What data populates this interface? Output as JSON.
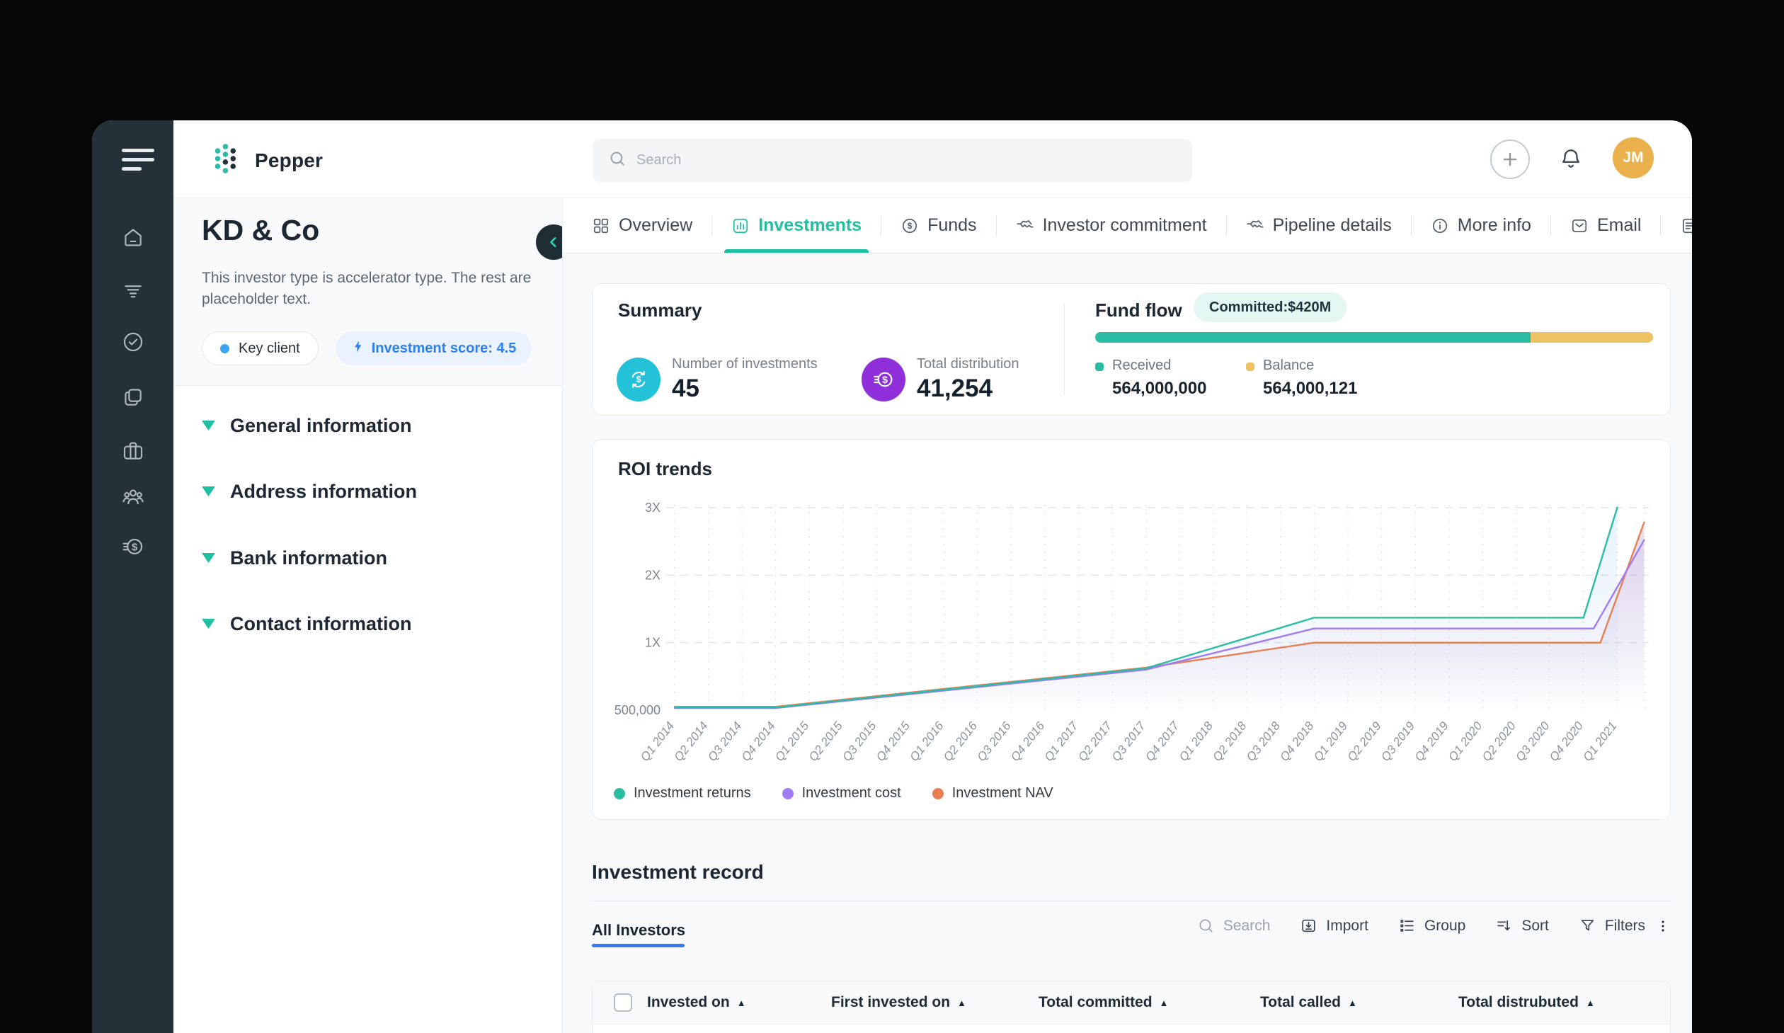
{
  "app": {
    "name": "Pepper"
  },
  "topbar": {
    "search_placeholder": "Search",
    "avatar_initials": "JM"
  },
  "rail": {
    "items": [
      {
        "name": "home",
        "icon": "home"
      },
      {
        "name": "pipeline",
        "icon": "layers"
      },
      {
        "name": "tasks",
        "icon": "check-circle"
      },
      {
        "name": "documents",
        "icon": "copy-stack"
      },
      {
        "name": "portfolio",
        "icon": "briefcase"
      },
      {
        "name": "investors",
        "icon": "people-group"
      },
      {
        "name": "payments",
        "icon": "coin-dollar"
      }
    ]
  },
  "investor_panel": {
    "name": "KD & Co",
    "description": "This investor type is accelerator type. The rest are placeholder text.",
    "badges": {
      "key_client": "Key client",
      "score": "Investment score: 4.5"
    },
    "sections": [
      "General information",
      "Address information",
      "Bank information",
      "Contact information"
    ]
  },
  "tabs": [
    {
      "label": "Overview",
      "icon": "grid",
      "active": false
    },
    {
      "label": "Investments",
      "icon": "bar-chart",
      "active": true
    },
    {
      "label": "Funds",
      "icon": "dollar-circle",
      "active": false
    },
    {
      "label": "Investor commitment",
      "icon": "handshake",
      "active": false
    },
    {
      "label": "Pipeline details",
      "icon": "handshake",
      "active": false
    },
    {
      "label": "More info",
      "icon": "info-circle",
      "active": false
    },
    {
      "label": "Email",
      "icon": "envelope",
      "active": false
    },
    {
      "label": "Sheets",
      "icon": "file-sheet",
      "active": false
    },
    {
      "label": "",
      "icon": "partial",
      "active": false
    }
  ],
  "summary": {
    "title": "Summary",
    "metrics": [
      {
        "label": "Number of investments",
        "value": "45",
        "color": "#23c2d8",
        "icon": "refresh-dollar"
      },
      {
        "label": "Total distribution",
        "value": "41,254",
        "color": "#8e2fd9",
        "icon": "coin-dollar"
      }
    ]
  },
  "fund_flow": {
    "title": "Fund flow",
    "badge": "Committed:$420M",
    "received": {
      "label": "Received",
      "value": "564,000,000",
      "color": "#2abda4",
      "pct": 78
    },
    "balance": {
      "label": "Balance",
      "value": "564,000,121",
      "color": "#ecc263"
    }
  },
  "chart_data": {
    "type": "line",
    "title": "ROI trends",
    "x_categories": [
      "Q1 2014",
      "Q2 2014",
      "Q3 2014",
      "Q4 2014",
      "Q1 2015",
      "Q2 2015",
      "Q3 2015",
      "Q4 2015",
      "Q1 2016",
      "Q2 2016",
      "Q3 2016",
      "Q4 2016",
      "Q1 2017",
      "Q2 2017",
      "Q3 2017",
      "Q4 2017",
      "Q1 2018",
      "Q2 2018",
      "Q3 2018",
      "Q4 2018",
      "Q1 2019",
      "Q2 2019",
      "Q3 2019",
      "Q4 2019",
      "Q1 2020",
      "Q2 2020",
      "Q3 2020",
      "Q4 2020",
      "Q1 2021"
    ],
    "y_ticks": [
      {
        "label": "500,000",
        "value": 0
      },
      {
        "label": "1X",
        "value": 1
      },
      {
        "label": "2X",
        "value": 2
      },
      {
        "label": "3X",
        "value": 3
      }
    ],
    "grid": "dashed",
    "legend_position": "bottom-left",
    "series": [
      {
        "name": "Investment returns",
        "color": "#2abda4",
        "fill_from": "rgba(96,170,220,0.16)",
        "fill_to": "rgba(96,170,220,0)",
        "points": [
          [
            0,
            0.04
          ],
          [
            3,
            0.04
          ],
          [
            14,
            0.62
          ],
          [
            19,
            1.37
          ],
          [
            27,
            1.37
          ],
          [
            28,
            3.0
          ]
        ]
      },
      {
        "name": "Investment cost",
        "color": "#9f7cf5",
        "fill_from": "rgba(150,120,245,0.14)",
        "fill_to": "rgba(150,120,245,0)",
        "points": [
          [
            0,
            0.03
          ],
          [
            3,
            0.03
          ],
          [
            14,
            0.6
          ],
          [
            19,
            1.21
          ],
          [
            27.3,
            1.21
          ],
          [
            28.8,
            2.52
          ]
        ]
      },
      {
        "name": "Investment NAV",
        "color": "#e87f54",
        "fill_from": "rgba(183,166,201,0.34)",
        "fill_to": "rgba(183,166,201,0)",
        "points": [
          [
            0,
            0.05
          ],
          [
            3,
            0.05
          ],
          [
            14,
            0.63
          ],
          [
            19,
            1.0
          ],
          [
            27.5,
            1.0
          ],
          [
            28.8,
            2.78
          ]
        ]
      }
    ]
  },
  "record": {
    "title": "Investment record",
    "active_tab": "All Investors",
    "toolbar": [
      {
        "label": "Search",
        "icon": "search",
        "muted": true
      },
      {
        "label": "Import",
        "icon": "import",
        "muted": false
      },
      {
        "label": "Group",
        "icon": "group",
        "muted": false
      },
      {
        "label": "Sort",
        "icon": "sort",
        "muted": false
      },
      {
        "label": "Filters",
        "icon": "filter-funnel",
        "muted": false
      }
    ],
    "columns": [
      {
        "label": "Invested on",
        "sortable": true
      },
      {
        "label": "First invested on",
        "sortable": true
      },
      {
        "label": "Total committed",
        "sortable": true
      },
      {
        "label": "Total called",
        "sortable": true
      },
      {
        "label": "Total distrubuted",
        "sortable": true
      }
    ]
  }
}
